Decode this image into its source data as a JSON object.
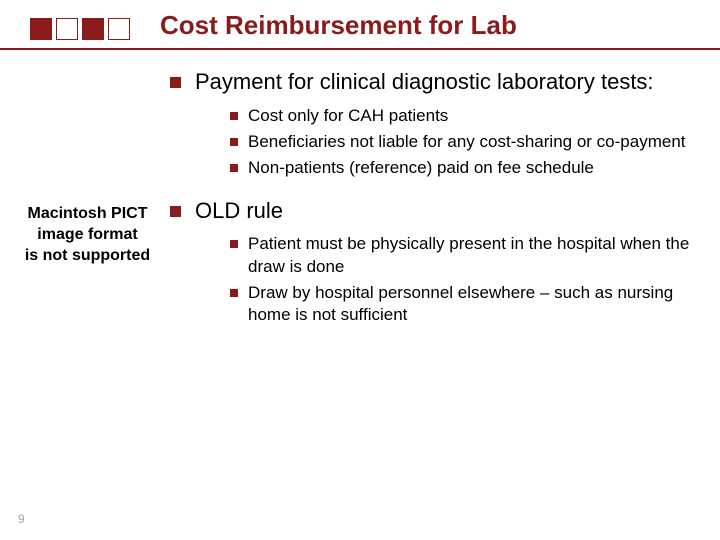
{
  "title": "Cost Reimbursement for Lab",
  "title_color": "#8b1a1a",
  "title_fontsize": 26,
  "accent_color": "#8b1a1a",
  "background_color": "#ffffff",
  "body_fontsize_l1": 22,
  "body_fontsize_l2": 17,
  "placeholder": {
    "line1": "Macintosh PICT",
    "line2": "image format",
    "line3": "is not supported"
  },
  "bullets": {
    "b1": "Payment for clinical diagnostic laboratory tests:",
    "b1a": "Cost only for CAH patients",
    "b1b": "Beneficiaries not liable for any cost-sharing or co-payment",
    "b1c": "Non-patients (reference) paid on fee schedule",
    "b2": "OLD rule",
    "b2a": "Patient must be physically present in the hospital when the draw is done",
    "b2b": "Draw by hospital personnel elsewhere – such as nursing home is not sufficient"
  },
  "page_number": "9"
}
